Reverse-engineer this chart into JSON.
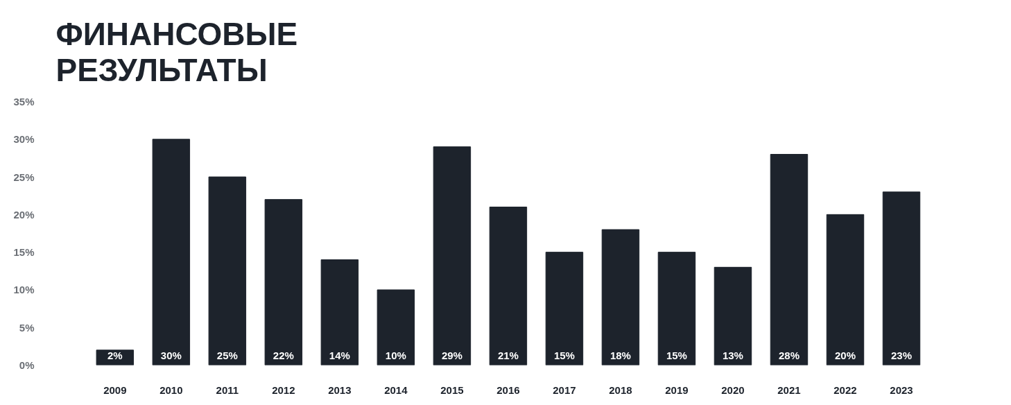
{
  "chart_data": {
    "type": "bar",
    "title": "ФИНАНСОВЫЕ\nРЕЗУЛЬТАТЫ",
    "categories": [
      "2009",
      "2010",
      "2011",
      "2012",
      "2013",
      "2014",
      "2015",
      "2016",
      "2017",
      "2018",
      "2019",
      "2020",
      "2021",
      "2022",
      "2023"
    ],
    "values": [
      2,
      30,
      25,
      22,
      14,
      10,
      29,
      21,
      15,
      18,
      15,
      13,
      28,
      20,
      23
    ],
    "color": "#1d232c",
    "ylim": [
      0,
      35
    ],
    "yticks": [
      {
        "value": 0,
        "label": "0%"
      },
      {
        "value": 5,
        "label": "5%"
      },
      {
        "value": 10,
        "label": "10%"
      },
      {
        "value": 15,
        "label": "15%"
      },
      {
        "value": 20,
        "label": "20%"
      },
      {
        "value": 25,
        "label": "25%"
      },
      {
        "value": 30,
        "label": "30%"
      },
      {
        "value": 35,
        "label": "35%"
      }
    ],
    "value_labels": [
      "2%",
      "30%",
      "25%",
      "22%",
      "14%",
      "10%",
      "29%",
      "21%",
      "15%",
      "18%",
      "15%",
      "13%",
      "28%",
      "20%",
      "23%"
    ],
    "grid": false
  }
}
